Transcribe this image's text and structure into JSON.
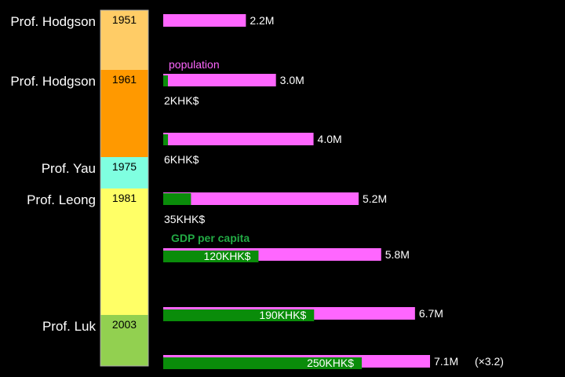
{
  "colors": {
    "background": "#000000",
    "population_bar": "#ff66ff",
    "gdp_bar": "#0a8c0a",
    "population_legend": "#ff66ff",
    "gdp_legend": "#22aa44"
  },
  "timeline": [
    {
      "person": "Prof. Hodgson",
      "year": "1951",
      "color": "#ffcc66"
    },
    {
      "person": "Prof. Hodgson",
      "year": "1961",
      "color": "#ff9900"
    },
    {
      "person": "Prof. Yau",
      "year": "1975",
      "color": "#7fffe0"
    },
    {
      "person": "Prof. Leong",
      "year": "1981",
      "color": "#ffff66"
    },
    {
      "person": "Prof. Luk",
      "year": "2003",
      "color": "#92d050"
    }
  ],
  "legend": {
    "population": "population",
    "gdp": "GDP per capita"
  },
  "chart_data": {
    "type": "bar",
    "title": "",
    "xlabel": "",
    "ylabel": "",
    "series": [
      {
        "name": "population",
        "values": [
          2.2,
          3.0,
          4.0,
          5.2,
          5.8,
          6.7,
          7.1
        ],
        "unit": "M",
        "labels": [
          "2.2M",
          "3.0M",
          "4.0M",
          "5.2M",
          "5.8M",
          "6.7M",
          "7.1M"
        ]
      },
      {
        "name": "GDP per capita",
        "values": [
          null,
          2,
          6,
          35,
          120,
          190,
          250
        ],
        "unit": "KHK$",
        "labels": [
          "",
          "2KHK$",
          "6KHK$",
          "35KHK$",
          "120KHK$",
          "190KHK$",
          "250KHK$"
        ]
      }
    ],
    "annotations": [
      "(×3.2)"
    ]
  }
}
